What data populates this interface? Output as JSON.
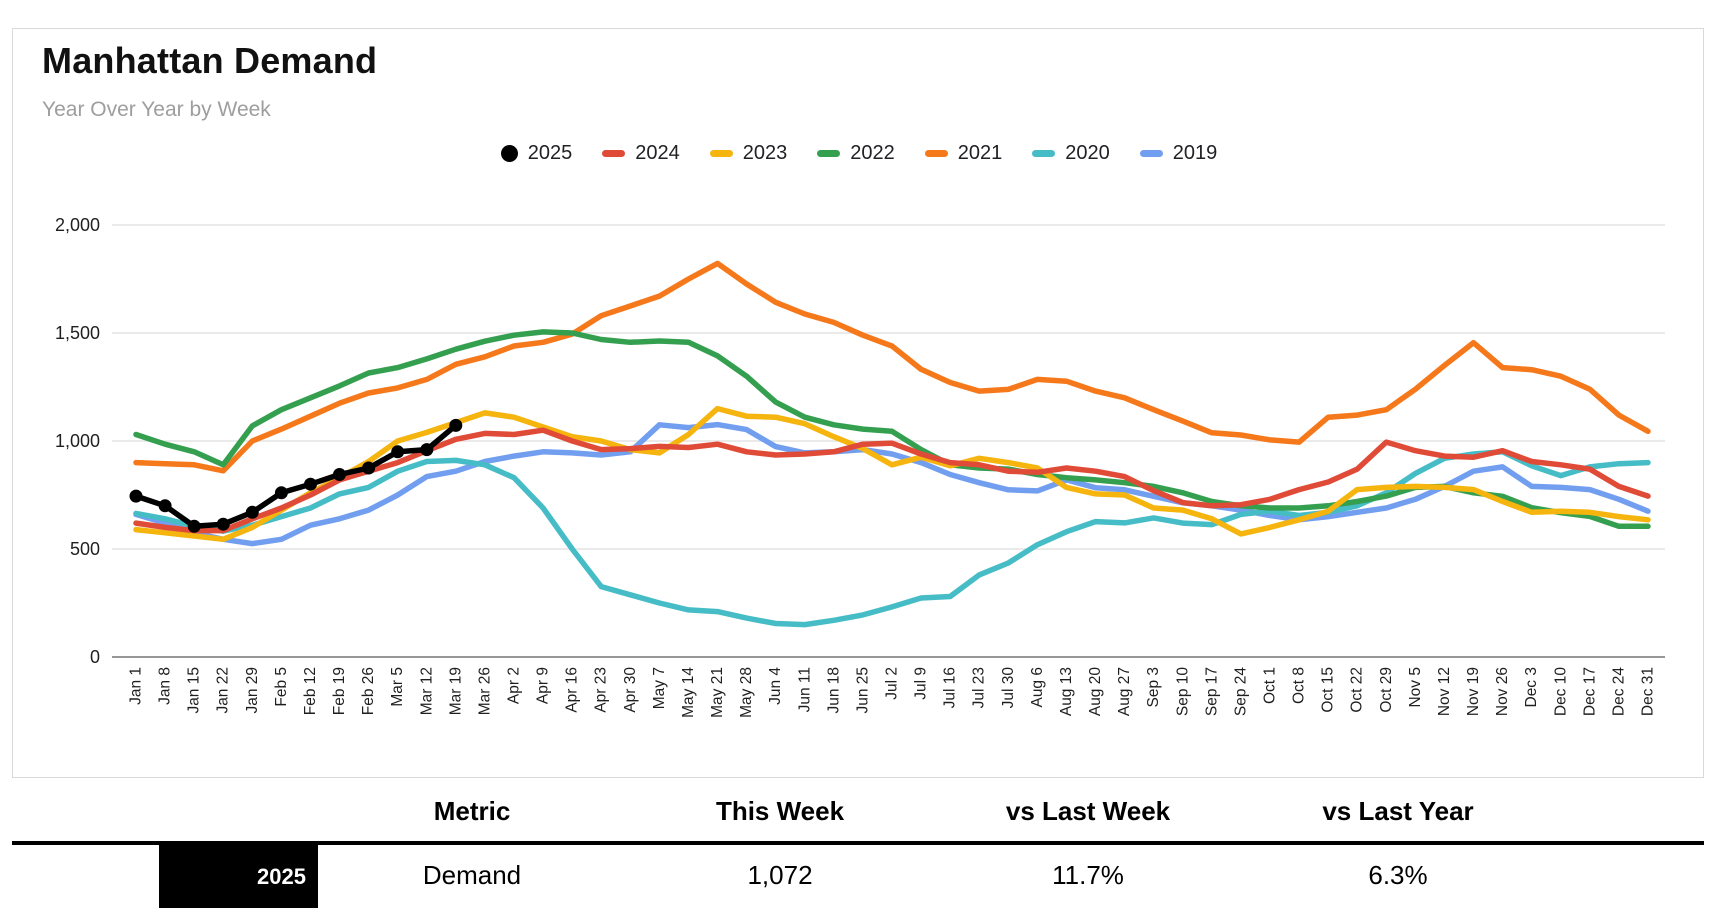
{
  "header": {
    "title": "Manhattan Demand",
    "subtitle": "Year Over Year by Week"
  },
  "legend": {
    "items": [
      {
        "label": "2025",
        "color": "#000000",
        "shape": "circle"
      },
      {
        "label": "2024",
        "color": "#e04b38",
        "shape": "dash"
      },
      {
        "label": "2023",
        "color": "#f5b40e",
        "shape": "dash"
      },
      {
        "label": "2022",
        "color": "#34a04f",
        "shape": "dash"
      },
      {
        "label": "2021",
        "color": "#f5781b",
        "shape": "dash"
      },
      {
        "label": "2020",
        "color": "#46bdc6",
        "shape": "dash"
      },
      {
        "label": "2019",
        "color": "#729ef0",
        "shape": "dash"
      }
    ]
  },
  "chart_data": {
    "type": "line",
    "title": "Manhattan Demand",
    "subtitle": "Year Over Year by Week",
    "ylim": [
      0,
      2000
    ],
    "yticks": [
      0,
      500,
      1000,
      1500,
      2000
    ],
    "ytick_labels": [
      "0",
      "500",
      "1,000",
      "1,500",
      "2,000"
    ],
    "grid": true,
    "legend_position": "top",
    "x_labels": [
      "Jan 1",
      "Jan 8",
      "Jan 15",
      "Jan 22",
      "Jan 29",
      "Feb 5",
      "Feb 12",
      "Feb 19",
      "Feb 26",
      "Mar 5",
      "Mar 12",
      "Mar 19",
      "Mar 26",
      "Apr 2",
      "Apr 9",
      "Apr 16",
      "Apr 23",
      "Apr 30",
      "May 7",
      "May 14",
      "May 21",
      "May 28",
      "Jun 4",
      "Jun 11",
      "Jun 18",
      "Jun 25",
      "Jul 2",
      "Jul 9",
      "Jul 16",
      "Jul 23",
      "Jul 30",
      "Aug 6",
      "Aug 13",
      "Aug 20",
      "Aug 27",
      "Sep 3",
      "Sep 10",
      "Sep 17",
      "Sep 24",
      "Oct 1",
      "Oct 8",
      "Oct 15",
      "Oct 22",
      "Oct 29",
      "Nov 5",
      "Nov 12",
      "Nov 19",
      "Nov 26",
      "Dec 3",
      "Dec 10",
      "Dec 17",
      "Dec 24",
      "Dec 31"
    ],
    "series": [
      {
        "name": "2019",
        "color": "#729ef0",
        "points": false,
        "values": [
          660,
          620,
          575,
          545,
          525,
          545,
          610,
          640,
          680,
          750,
          835,
          860,
          905,
          930,
          950,
          945,
          935,
          950,
          1075,
          1062,
          1076,
          1053,
          974,
          945,
          950,
          960,
          940,
          900,
          845,
          807,
          774,
          769,
          820,
          784,
          774,
          744,
          714,
          700,
          680,
          655,
          635,
          650,
          670,
          690,
          730,
          790,
          860,
          880,
          790,
          785,
          775,
          730,
          675
        ]
      },
      {
        "name": "2020",
        "color": "#46bdc6",
        "points": false,
        "values": [
          665,
          640,
          605,
          583,
          610,
          650,
          690,
          755,
          785,
          860,
          905,
          910,
          890,
          830,
          690,
          500,
          326,
          288,
          250,
          218,
          210,
          180,
          155,
          150,
          170,
          195,
          232,
          273,
          280,
          380,
          435,
          520,
          580,
          627,
          621,
          644,
          620,
          613,
          660,
          675,
          655,
          670,
          700,
          760,
          850,
          920,
          940,
          950,
          885,
          840,
          880,
          895,
          900
        ]
      },
      {
        "name": "2021",
        "color": "#f5781b",
        "points": false,
        "values": [
          900,
          895,
          890,
          862,
          1000,
          1055,
          1115,
          1175,
          1222,
          1246,
          1285,
          1355,
          1390,
          1440,
          1457,
          1495,
          1580,
          1625,
          1671,
          1750,
          1822,
          1727,
          1642,
          1588,
          1549,
          1490,
          1440,
          1332,
          1271,
          1231,
          1239,
          1285,
          1277,
          1231,
          1200,
          1145,
          1092,
          1038,
          1028,
          1005,
          995,
          1110,
          1120,
          1145,
          1240,
          1350,
          1455,
          1340,
          1330,
          1300,
          1240,
          1120,
          1045
        ]
      },
      {
        "name": "2022",
        "color": "#34a04f",
        "points": false,
        "values": [
          1030,
          985,
          950,
          890,
          1070,
          1145,
          1200,
          1255,
          1315,
          1340,
          1380,
          1425,
          1462,
          1490,
          1505,
          1500,
          1470,
          1457,
          1463,
          1457,
          1394,
          1300,
          1180,
          1110,
          1075,
          1055,
          1045,
          960,
          890,
          875,
          870,
          845,
          830,
          820,
          807,
          790,
          760,
          720,
          700,
          690,
          690,
          700,
          720,
          745,
          785,
          790,
          760,
          744,
          691,
          668,
          651,
          605,
          605
        ]
      },
      {
        "name": "2023",
        "color": "#f5b40e",
        "points": false,
        "values": [
          590,
          575,
          560,
          545,
          600,
          680,
          760,
          830,
          905,
          1000,
          1040,
          1085,
          1130,
          1110,
          1065,
          1020,
          1000,
          960,
          945,
          1030,
          1150,
          1115,
          1110,
          1080,
          1020,
          965,
          890,
          925,
          885,
          920,
          900,
          875,
          785,
          755,
          750,
          690,
          680,
          640,
          570,
          600,
          635,
          675,
          775,
          785,
          790,
          785,
          775,
          720,
          670,
          675,
          670,
          650,
          635
        ]
      },
      {
        "name": "2024",
        "color": "#e04b38",
        "points": false,
        "values": [
          620,
          600,
          585,
          585,
          640,
          690,
          750,
          820,
          860,
          900,
          955,
          1008,
          1035,
          1030,
          1050,
          1000,
          960,
          965,
          975,
          970,
          985,
          950,
          935,
          940,
          950,
          985,
          990,
          940,
          900,
          890,
          860,
          855,
          875,
          860,
          835,
          770,
          715,
          700,
          705,
          730,
          775,
          810,
          870,
          995,
          955,
          930,
          925,
          955,
          905,
          890,
          870,
          790,
          745
        ]
      },
      {
        "name": "2025",
        "color": "#000000",
        "points": true,
        "values": [
          745,
          700,
          605,
          615,
          670,
          760,
          800,
          845,
          875,
          950,
          960,
          1072,
          null,
          null,
          null,
          null,
          null,
          null,
          null,
          null,
          null,
          null,
          null,
          null,
          null,
          null,
          null,
          null,
          null,
          null,
          null,
          null,
          null,
          null,
          null,
          null,
          null,
          null,
          null,
          null,
          null,
          null,
          null,
          null,
          null,
          null,
          null,
          null,
          null,
          null,
          null,
          null,
          null
        ]
      }
    ]
  },
  "table": {
    "columns": [
      "Metric",
      "This Week",
      "vs Last Week",
      "vs Last Year"
    ],
    "rows": [
      {
        "year": "2025",
        "year_bg": "#000000",
        "year_color": "#ffffff",
        "metric": "Demand",
        "this_week": "1,072",
        "vs_last_week": "11.7%",
        "vs_last_year": "6.3%"
      }
    ]
  }
}
